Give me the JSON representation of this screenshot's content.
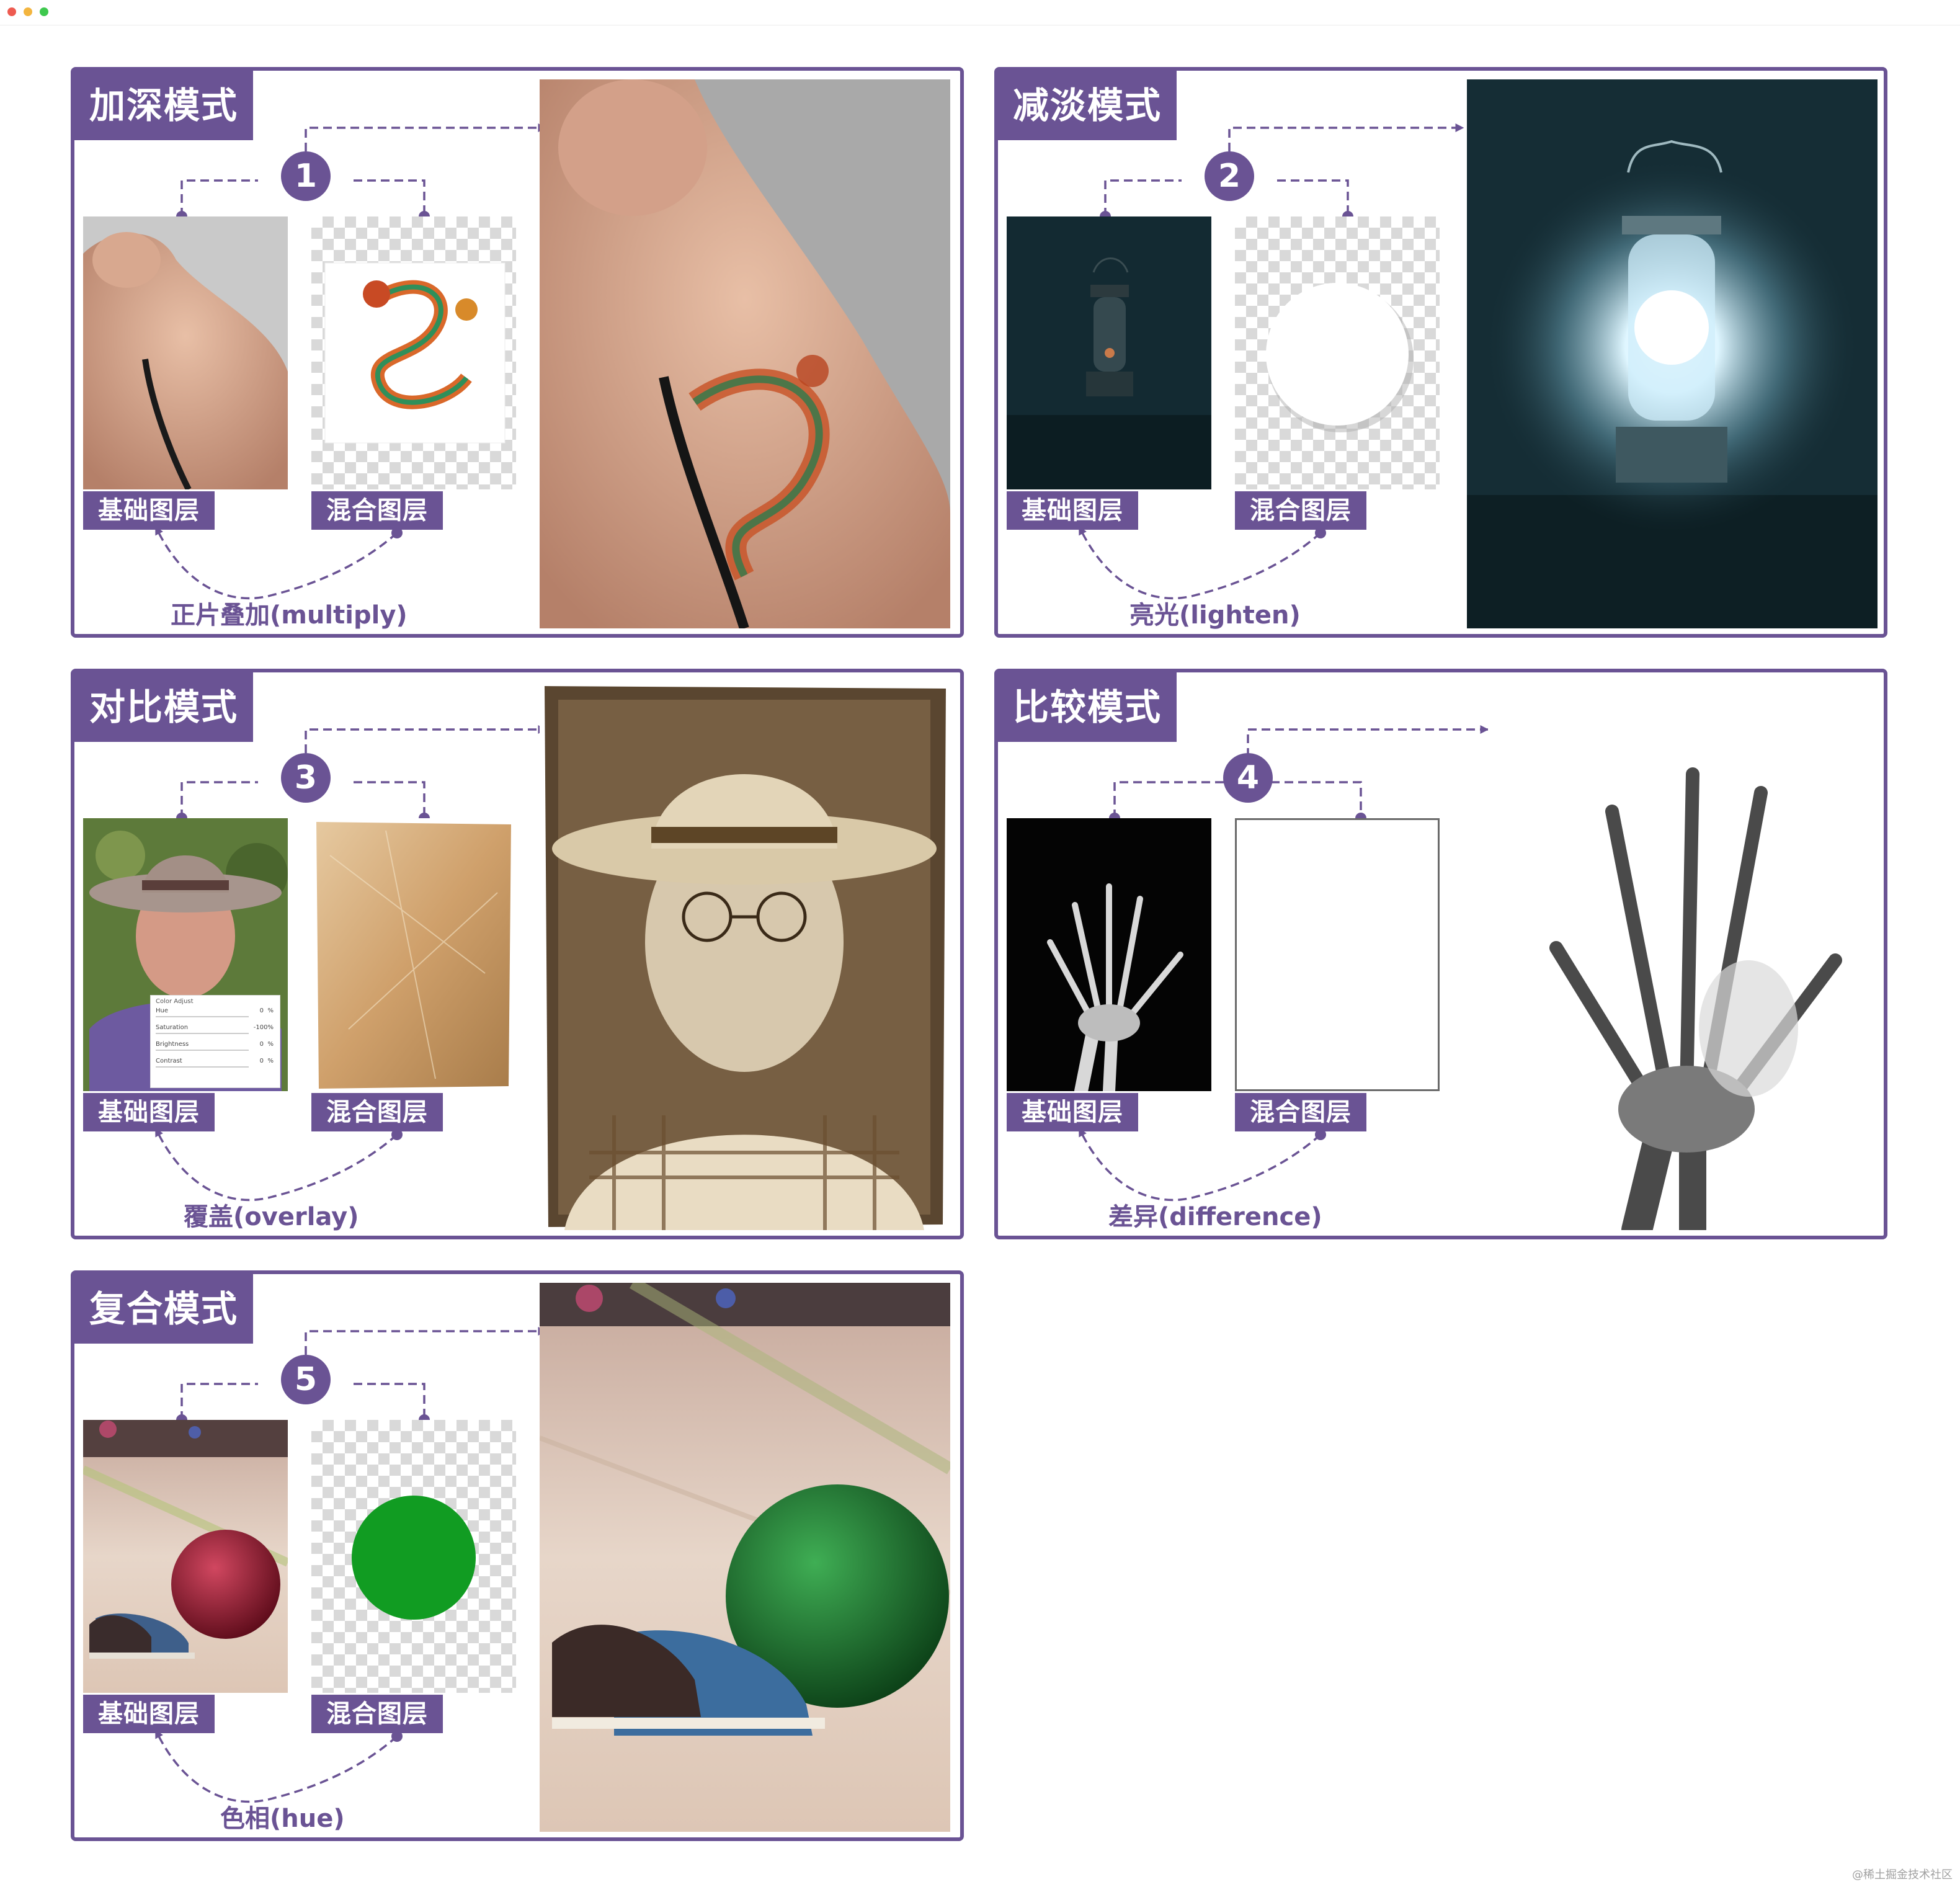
{
  "colors": {
    "accent": "#6a5394",
    "text_on_accent": "#ffffff",
    "window_red": "#ee5b50",
    "window_yellow": "#f3b53f",
    "window_green": "#3ec84e"
  },
  "panels": [
    {
      "id": "darken",
      "title": "加深模式",
      "number": "1",
      "base_label": "基础图层",
      "blend_label": "混合图层",
      "caption": "正片叠加(multiply)"
    },
    {
      "id": "lighten",
      "title": "减淡模式",
      "number": "2",
      "base_label": "基础图层",
      "blend_label": "混合图层",
      "caption": "亮光(lighten)"
    },
    {
      "id": "contrast",
      "title": "对比模式",
      "number": "3",
      "base_label": "基础图层",
      "blend_label": "混合图层",
      "caption": "覆盖(overlay)"
    },
    {
      "id": "comparative",
      "title": "比较模式",
      "number": "4",
      "base_label": "基础图层",
      "blend_label": "混合图层",
      "caption": "差异(difference)"
    },
    {
      "id": "composite",
      "title": "复合模式",
      "number": "5",
      "base_label": "基础图层",
      "blend_label": "混合图层",
      "caption": "色相(hue)"
    }
  ],
  "color_adjust": {
    "title": "Color Adjust",
    "rows": [
      {
        "label": "Hue",
        "value": "0",
        "unit": "%"
      },
      {
        "label": "Saturation",
        "value": "-100%",
        "unit": ""
      },
      {
        "label": "Brightness",
        "value": "0",
        "unit": "%"
      },
      {
        "label": "Contrast",
        "value": "0",
        "unit": "%"
      }
    ]
  },
  "watermark": "@稀土掘金技术社区",
  "icons": {
    "arrow": "arrow-right-icon",
    "curved": "curved-double-arrow-icon"
  }
}
